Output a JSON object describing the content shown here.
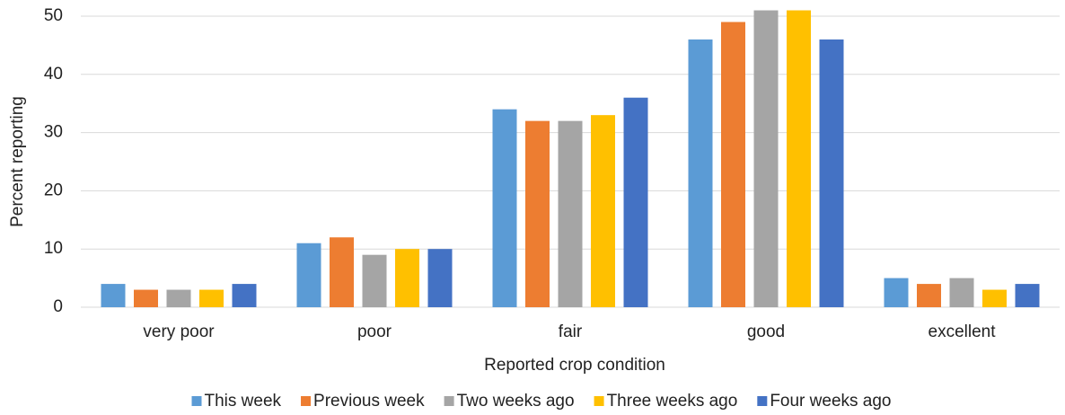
{
  "chart_data": {
    "type": "bar",
    "xlabel": "Reported crop condition",
    "ylabel": "Percent reporting",
    "categories": [
      "very poor",
      "poor",
      "fair",
      "good",
      "excellent"
    ],
    "series": [
      {
        "name": "This week",
        "color": "#5b9bd5",
        "values": [
          4,
          11,
          34,
          46,
          5
        ]
      },
      {
        "name": "Previous week",
        "color": "#ed7d31",
        "values": [
          3,
          12,
          32,
          49,
          4
        ]
      },
      {
        "name": "Two weeks ago",
        "color": "#a5a5a5",
        "values": [
          3,
          9,
          32,
          51,
          5
        ]
      },
      {
        "name": "Three weeks ago",
        "color": "#ffc000",
        "values": [
          3,
          10,
          33,
          51,
          3
        ]
      },
      {
        "name": "Four weeks ago",
        "color": "#4472c4",
        "values": [
          4,
          10,
          36,
          46,
          4
        ]
      }
    ],
    "ylim": [
      0,
      50
    ],
    "yticks": [
      0,
      10,
      20,
      30,
      40,
      50
    ],
    "grid": true,
    "legend": "bottom"
  }
}
